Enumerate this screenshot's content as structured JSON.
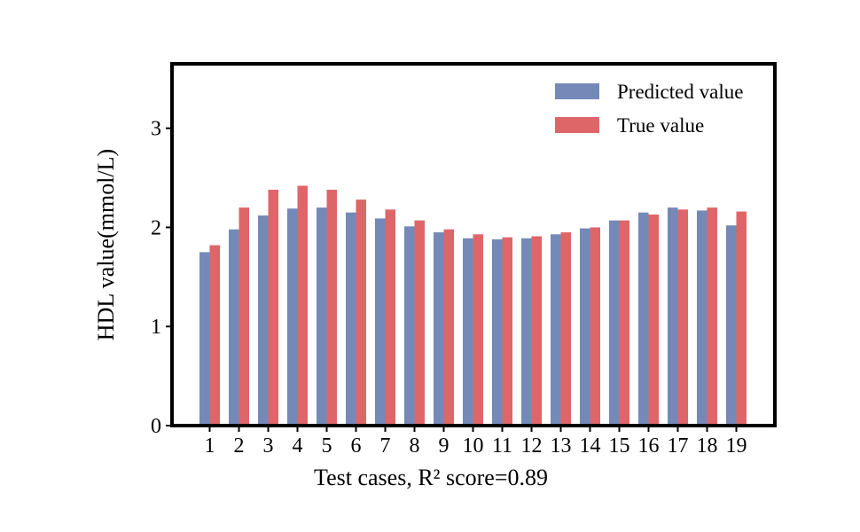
{
  "chart_data": {
    "type": "bar",
    "xlabel": "Test cases,  R² score=0.89",
    "ylabel": "HDL value(mmol/L)",
    "ylim": [
      0,
      3.65
    ],
    "yticks": [
      0,
      1,
      2,
      3
    ],
    "grid": false,
    "legend_position": "top-right",
    "categories": [
      "1",
      "2",
      "3",
      "4",
      "5",
      "6",
      "7",
      "8",
      "9",
      "10",
      "11",
      "12",
      "13",
      "14",
      "15",
      "16",
      "17",
      "18",
      "19"
    ],
    "series": [
      {
        "name": "Predicted value",
        "color": "#7589b8",
        "values": [
          1.75,
          1.98,
          2.12,
          2.19,
          2.2,
          2.15,
          2.09,
          2.01,
          1.95,
          1.89,
          1.88,
          1.89,
          1.93,
          1.99,
          2.07,
          2.15,
          2.2,
          2.17,
          2.02
        ]
      },
      {
        "name": "True value",
        "color": "#de6669",
        "values": [
          1.82,
          2.2,
          2.38,
          2.42,
          2.38,
          2.28,
          2.18,
          2.07,
          1.98,
          1.93,
          1.9,
          1.91,
          1.95,
          2.0,
          2.07,
          2.13,
          2.18,
          2.2,
          2.16
        ]
      }
    ]
  }
}
